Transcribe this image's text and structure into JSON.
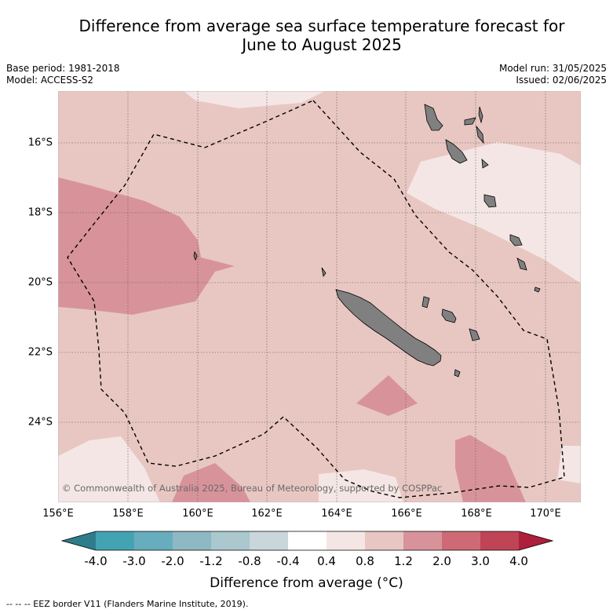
{
  "title_line1": "Difference from average sea surface temperature forecast for",
  "title_line2": "June to August 2025",
  "base_period": "Base period: 1981-2018",
  "model": "Model: ACCESS-S2",
  "model_run": "Model run: 31/05/2025",
  "issued": "Issued: 02/06/2025",
  "copyright": "© Commonwealth of Australia 2025, Bureau of Meteorology, supported by COSPPac",
  "lat_labels": [
    "16°S",
    "18°S",
    "20°S",
    "22°S",
    "24°S"
  ],
  "lon_labels": [
    "156°E",
    "158°E",
    "160°E",
    "162°E",
    "164°E",
    "166°E",
    "168°E",
    "170°E"
  ],
  "colorbar": {
    "labels": [
      "-4.0",
      "-3.0",
      "-2.0",
      "-1.2",
      "-0.8",
      "-0.4",
      "0.4",
      "0.8",
      "1.2",
      "2.0",
      "3.0",
      "4.0"
    ],
    "colors": [
      "#2f7d8c",
      "#44a3b3",
      "#68adbd",
      "#8db8c4",
      "#aac8cd",
      "#c9d7da",
      "#ffffff",
      "#f4e6e4",
      "#e8c7c2",
      "#d8939a",
      "#cd6a75",
      "#be4456",
      "#ad1f3a"
    ],
    "title": "Difference from average (°C)"
  },
  "footer": "--  --  -- EEZ border V11 (Flanders Marine Institute, 2019)."
}
